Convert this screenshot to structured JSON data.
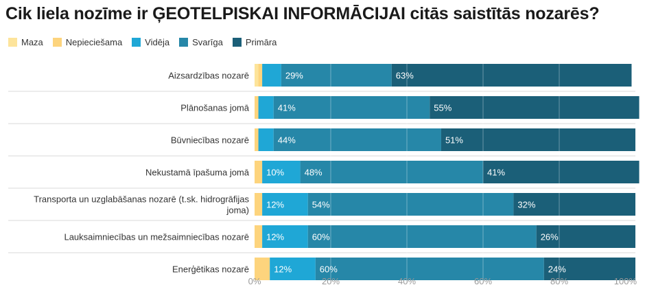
{
  "chart_data": {
    "type": "bar",
    "orientation": "horizontal",
    "stacked": true,
    "title": "Cik liela nozīme ir ĢEOTELPISKAI INFORMĀCIJAI citās saistītās nozarēs?",
    "categories": [
      "Aizsardzības nozarē",
      "Plānošanas jomā",
      "Būvniecības nozarē",
      "Nekustamā īpašuma jomā",
      "Transporta un uzglabāšanas nozarē (t.sk. hidrogrāfijas joma)",
      "Lauksaimniecības un mežsaimniecības nozarē",
      "Enerģētikas nozarē"
    ],
    "category_lines": [
      [
        "Aizsardzības nozarē"
      ],
      [
        "Plānošanas jomā"
      ],
      [
        "Būvniecības nozarē"
      ],
      [
        "Nekustamā īpašuma jomā"
      ],
      [
        "Transporta un uzglabāšanas nozarē (t.sk. hidrogrāfijas",
        "joma)"
      ],
      [
        "Lauksaimniecības un mežsaimniecības nozarē"
      ],
      [
        "Enerģētikas nozarē"
      ]
    ],
    "series": [
      {
        "name": "Maza",
        "color": "#fde49b",
        "values": [
          1,
          0,
          0,
          0,
          0,
          0,
          0
        ]
      },
      {
        "name": "Nepieciešama",
        "color": "#fdd47d",
        "values": [
          1,
          1,
          1,
          2,
          2,
          2,
          4
        ]
      },
      {
        "name": "Vidēja",
        "color": "#1fa7d6",
        "values": [
          5,
          4,
          4,
          10,
          12,
          12,
          12
        ]
      },
      {
        "name": "Svarīga",
        "color": "#2687a8",
        "values": [
          29,
          41,
          44,
          48,
          54,
          60,
          60
        ]
      },
      {
        "name": "Primāra",
        "color": "#1b5f78",
        "values": [
          63,
          55,
          51,
          41,
          32,
          26,
          24
        ]
      }
    ],
    "data_labels": [
      [
        null,
        null,
        null,
        "29%",
        "63%"
      ],
      [
        null,
        null,
        null,
        "41%",
        "55%"
      ],
      [
        null,
        null,
        null,
        "44%",
        "51%"
      ],
      [
        null,
        null,
        "10%",
        "48%",
        "41%"
      ],
      [
        null,
        null,
        "12%",
        "54%",
        "32%"
      ],
      [
        null,
        null,
        "12%",
        "60%",
        "26%"
      ],
      [
        null,
        null,
        "12%",
        "60%",
        "24%"
      ]
    ],
    "xlim": [
      0,
      100
    ],
    "xticks": [
      0,
      20,
      40,
      60,
      80,
      100
    ],
    "xtick_labels": [
      "0%",
      "20%",
      "40%",
      "60%",
      "80%",
      "100%"
    ],
    "grid": true,
    "legend_position": "top-left"
  }
}
